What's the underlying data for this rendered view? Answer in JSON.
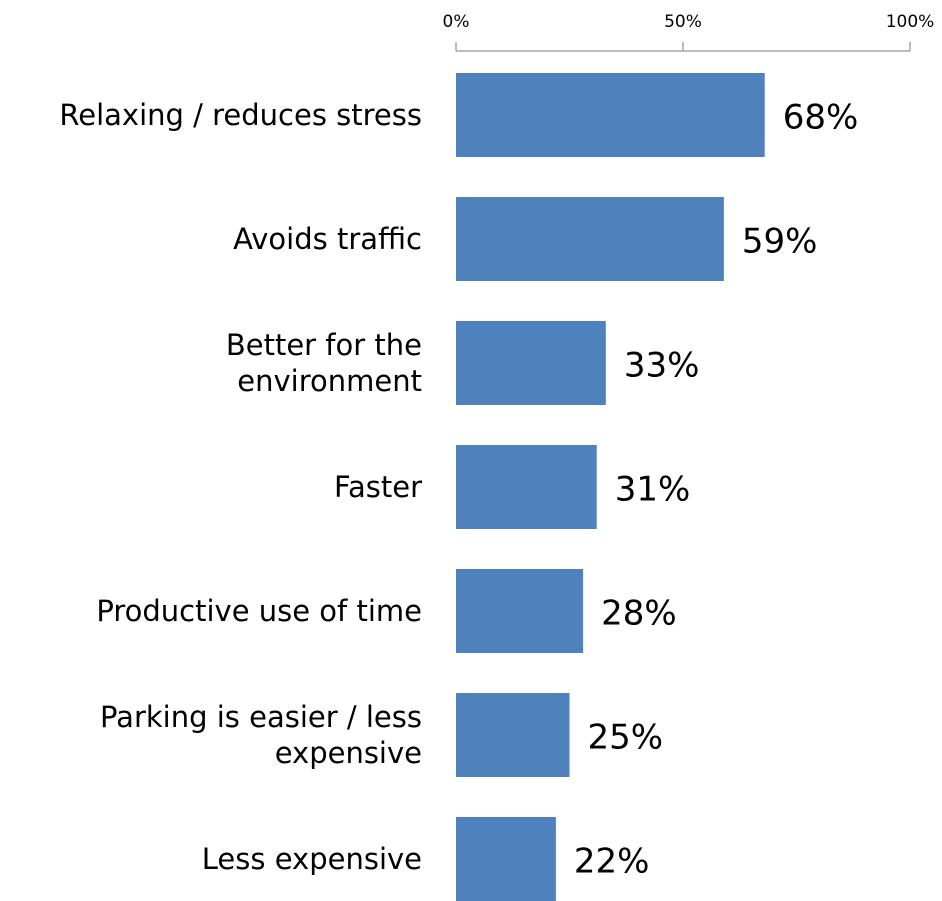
{
  "chart_data": {
    "type": "bar",
    "orientation": "horizontal",
    "categories": [
      "Relaxing / reduces stress",
      "Avoids traffic",
      "Better for the\nenvironment",
      "Faster",
      "Productive use of time",
      "Parking is easier / less\nexpensive",
      "Less expensive"
    ],
    "values": [
      68,
      59,
      33,
      31,
      28,
      25,
      22
    ],
    "value_labels": [
      "68%",
      "59%",
      "33%",
      "31%",
      "28%",
      "25%",
      "22%"
    ],
    "color": "#4f81bd",
    "xlim": [
      0,
      100
    ],
    "xticks": [
      {
        "value": 0,
        "label": "0%"
      },
      {
        "value": 50,
        "label": "50%"
      },
      {
        "value": 100,
        "label": "100%"
      }
    ],
    "grid": false
  }
}
